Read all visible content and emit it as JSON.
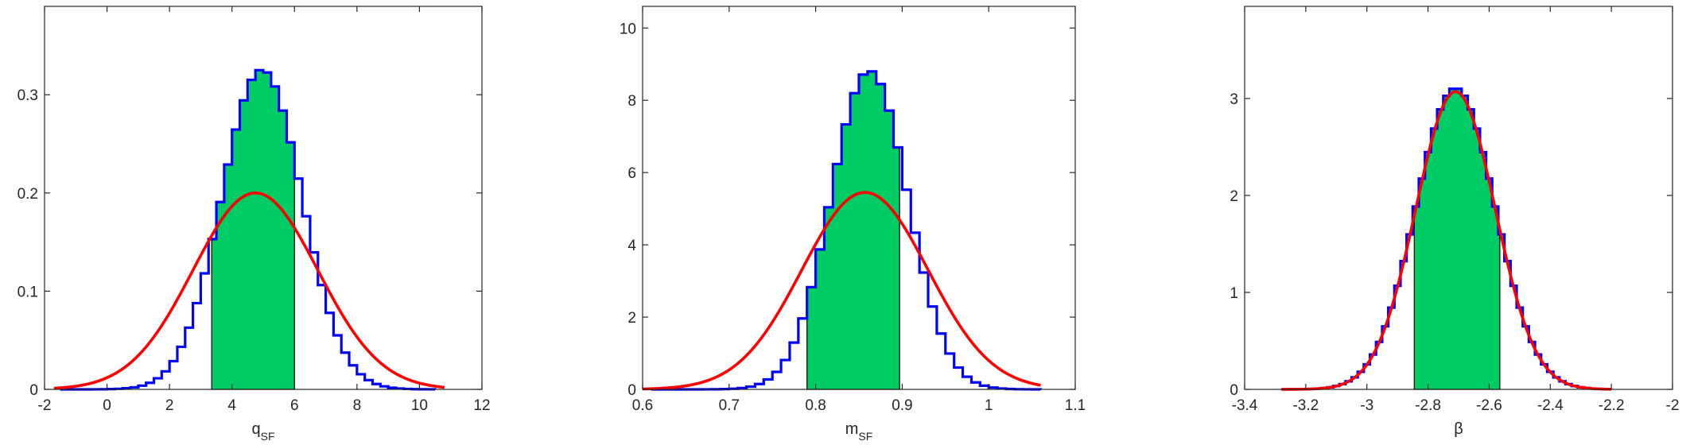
{
  "colors": {
    "histogram": "#0000ff",
    "fill": "#00cc66",
    "fit_curve": "#ff0000",
    "axes": "#262626"
  },
  "chart_data": [
    {
      "type": "histogram",
      "xlabel_main": "q",
      "xlabel_sub": "SF",
      "xlim": [
        -2,
        12
      ],
      "ylim": [
        0,
        0.39
      ],
      "xticks": [
        -2,
        0,
        2,
        4,
        6,
        8,
        10,
        12
      ],
      "xtick_labels": [
        "-2",
        "0",
        "2",
        "4",
        "6",
        "8",
        "10",
        "12"
      ],
      "yticks": [
        0,
        0.1,
        0.2,
        0.3
      ],
      "ytick_labels": [
        "0",
        "0.1",
        "0.2",
        "0.3"
      ],
      "bin_edges_range": [
        -1.5,
        10.5
      ],
      "bin_width": 0.25,
      "hist": {
        "type": "skewnormal",
        "loc": 4.75,
        "scale": 1.3,
        "shape": 0.2,
        "peak": 0.325
      },
      "shaded_interval": [
        3.35,
        6.0
      ],
      "fit": {
        "type": "normal",
        "mean": 4.75,
        "sd": 2.0,
        "peak": 0.2,
        "x_range": [
          -1.7,
          10.8
        ]
      }
    },
    {
      "type": "histogram",
      "xlabel_main": "m",
      "xlabel_sub": "SF",
      "xlim": [
        0.6,
        1.1
      ],
      "ylim": [
        0,
        10.6
      ],
      "xticks": [
        0.6,
        0.7,
        0.8,
        0.9,
        1.0,
        1.1
      ],
      "xtick_labels": [
        "0.6",
        "0.7",
        "0.8",
        "0.9",
        "1",
        "1.1"
      ],
      "yticks": [
        0,
        2,
        4,
        6,
        8,
        10
      ],
      "ytick_labels": [
        "0",
        "2",
        "4",
        "6",
        "8",
        "10"
      ],
      "bin_edges_range": [
        0.61,
        1.06
      ],
      "bin_width": 0.01,
      "hist": {
        "type": "skewnormal",
        "loc": 0.855,
        "scale": 0.045,
        "shape": 0.2,
        "peak": 8.8
      },
      "shaded_interval": [
        0.79,
        0.897
      ],
      "fit": {
        "type": "normal",
        "mean": 0.857,
        "sd": 0.073,
        "peak": 5.45,
        "x_range": [
          0.6,
          1.06
        ]
      }
    },
    {
      "type": "histogram",
      "xlabel_main": "β",
      "xlabel_sub": "",
      "xlim": [
        -3.4,
        -2.0
      ],
      "ylim": [
        0,
        3.95
      ],
      "xticks": [
        -3.4,
        -3.2,
        -3.0,
        -2.8,
        -2.6,
        -2.4,
        -2.2,
        -2.0
      ],
      "xtick_labels": [
        "-3.4",
        "-3.2",
        "-3",
        "-2.8",
        "-2.6",
        "-2.4",
        "-2.2",
        "-2"
      ],
      "yticks": [
        0,
        1,
        2,
        3
      ],
      "ytick_labels": [
        "0",
        "1",
        "2",
        "3"
      ],
      "bin_edges_range": [
        -3.25,
        -2.2
      ],
      "bin_width": 0.02,
      "hist": {
        "type": "normal",
        "loc": -2.71,
        "scale": 0.13,
        "shape": 0,
        "peak": 3.1
      },
      "shaded_interval": [
        -2.845,
        -2.565
      ],
      "fit": {
        "type": "normal",
        "mean": -2.71,
        "sd": 0.13,
        "peak": 3.07,
        "x_range": [
          -3.28,
          -2.2
        ]
      }
    }
  ]
}
